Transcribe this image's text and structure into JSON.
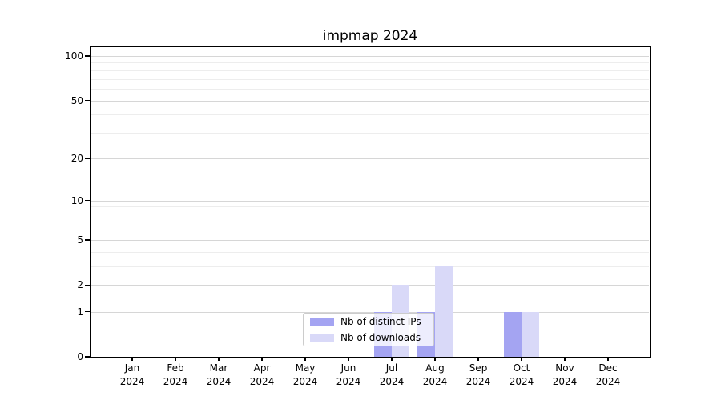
{
  "chart_data": {
    "type": "bar",
    "title": "impmap 2024",
    "year": "2024",
    "categories": [
      "Jan",
      "Feb",
      "Mar",
      "Apr",
      "May",
      "Jun",
      "Jul",
      "Aug",
      "Sep",
      "Oct",
      "Nov",
      "Dec"
    ],
    "series": [
      {
        "name": "Nb of distinct IPs",
        "color": "#a4a4f2",
        "values": [
          0,
          0,
          0,
          0,
          0,
          0,
          1,
          1,
          0,
          1,
          0,
          0
        ]
      },
      {
        "name": "Nb of downloads",
        "color": "#d9d9f8",
        "values": [
          0,
          0,
          0,
          0,
          0,
          0,
          2,
          3,
          0,
          1,
          0,
          0
        ]
      }
    ],
    "yscale": "log1p",
    "ylim": [
      0,
      110
    ],
    "y_tick_values": [
      0,
      1,
      2,
      5,
      10,
      20,
      50,
      100
    ],
    "y_tick_labels": [
      "0",
      "1",
      "2",
      "5",
      "10",
      "20",
      "50",
      "100"
    ],
    "y_minor_gridline_values": [
      3,
      4,
      6,
      7,
      8,
      9,
      30,
      40,
      60,
      70,
      80,
      90
    ],
    "grid": "horizontal",
    "legend": {
      "position": "lower-center-inside",
      "entries": [
        "Nb of distinct IPs",
        "Nb of downloads"
      ]
    },
    "colors": {
      "grid_major": "#d6d6d6",
      "grid_minor": "#ededed",
      "axis": "#000000",
      "background": "#ffffff"
    }
  }
}
